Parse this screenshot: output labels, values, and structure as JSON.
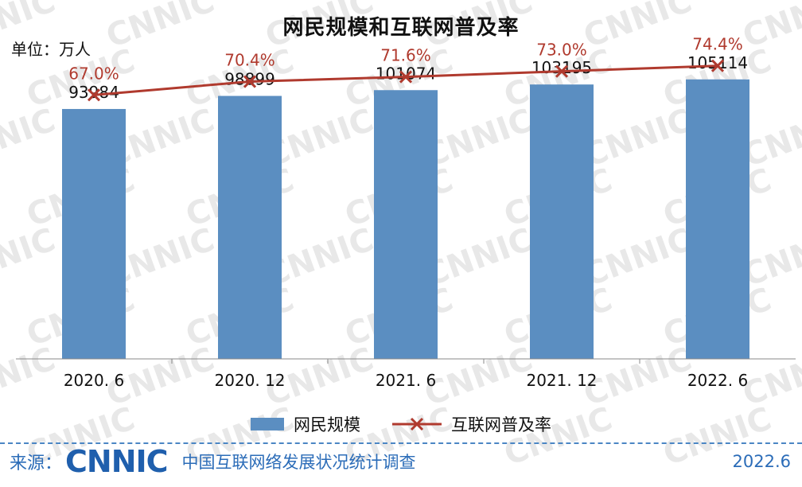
{
  "title": "网民规模和互联网普及率",
  "unit_label": "单位：万人",
  "watermark_text": "CNNIC",
  "legend": {
    "bar_label": "网民规模",
    "line_label": "互联网普及率"
  },
  "footer": {
    "source_label": "来源：",
    "logo_text": "CNNIC",
    "source_text": "中国互联网络发展状况统计调查",
    "date": "2022.6"
  },
  "colors": {
    "bar": "#5b8ec1",
    "line": "#b03a2e",
    "footer_text": "#2b6cb8"
  },
  "chart_data": {
    "type": "bar",
    "categories": [
      "2020. 6",
      "2020. 12",
      "2021. 6",
      "2021. 12",
      "2022. 6"
    ],
    "series": [
      {
        "name": "网民规模",
        "type": "bar",
        "values": [
          93984,
          98899,
          101074,
          103195,
          105114
        ]
      },
      {
        "name": "互联网普及率",
        "type": "line",
        "values": [
          67.0,
          70.4,
          71.6,
          73.0,
          74.4
        ],
        "labels": [
          "67.0%",
          "70.4%",
          "71.6%",
          "73.0%",
          "74.4%"
        ]
      }
    ],
    "bar_labels": [
      "93984",
      "98899",
      "101074",
      "103195",
      "105114"
    ],
    "ylim_bar": [
      0,
      123000
    ],
    "ylim_line": [
      0,
      80
    ],
    "legend_position": "bottom",
    "grid": false
  }
}
